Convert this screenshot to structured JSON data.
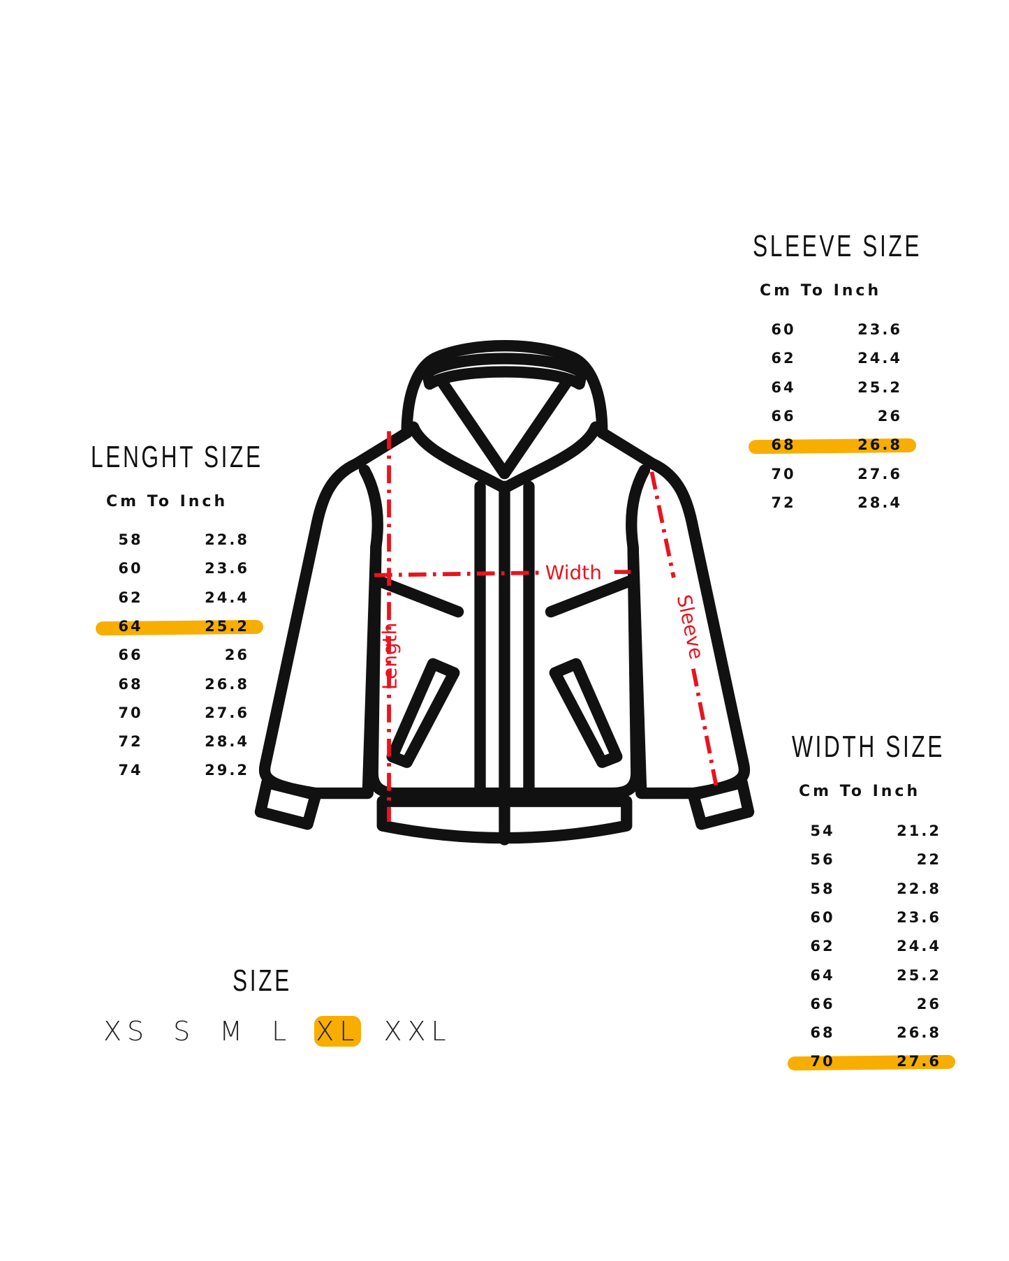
{
  "colors": {
    "highlight": "#F7AE00",
    "measure_line": "#E8141F",
    "outline": "#111111"
  },
  "sleeve": {
    "title": "SLEEVE SIZE",
    "subtitle": "Cm To Inch",
    "highlighted": 4,
    "rows": [
      [
        "60",
        "23.6"
      ],
      [
        "62",
        "24.4"
      ],
      [
        "64",
        "25.2"
      ],
      [
        "66",
        "26"
      ],
      [
        "68",
        "26.8"
      ],
      [
        "70",
        "27.6"
      ],
      [
        "72",
        "28.4"
      ]
    ]
  },
  "length": {
    "title": "LENGHT SIZE",
    "subtitle": "Cm To Inch",
    "highlighted": 3,
    "rows": [
      [
        "58",
        "22.8"
      ],
      [
        "60",
        "23.6"
      ],
      [
        "62",
        "24.4"
      ],
      [
        "64",
        "25.2"
      ],
      [
        "66",
        "26"
      ],
      [
        "68",
        "26.8"
      ],
      [
        "70",
        "27.6"
      ],
      [
        "72",
        "28.4"
      ],
      [
        "74",
        "29.2"
      ]
    ]
  },
  "width": {
    "title": "WIDTH SIZE",
    "subtitle": "Cm To Inch",
    "highlighted": 8,
    "rows": [
      [
        "54",
        "21.2"
      ],
      [
        "56",
        "22"
      ],
      [
        "58",
        "22.8"
      ],
      [
        "60",
        "23.6"
      ],
      [
        "62",
        "24.4"
      ],
      [
        "64",
        "25.2"
      ],
      [
        "66",
        "26"
      ],
      [
        "68",
        "26.8"
      ],
      [
        "70",
        "27.6"
      ]
    ]
  },
  "size": {
    "title": "SIZE",
    "selected": 4,
    "options": [
      "XS",
      "S",
      "M",
      "L",
      "XL",
      "XXL"
    ]
  },
  "jacket": {
    "labels": {
      "length": "Length",
      "width": "Width",
      "sleeve": "Sleeve"
    }
  }
}
